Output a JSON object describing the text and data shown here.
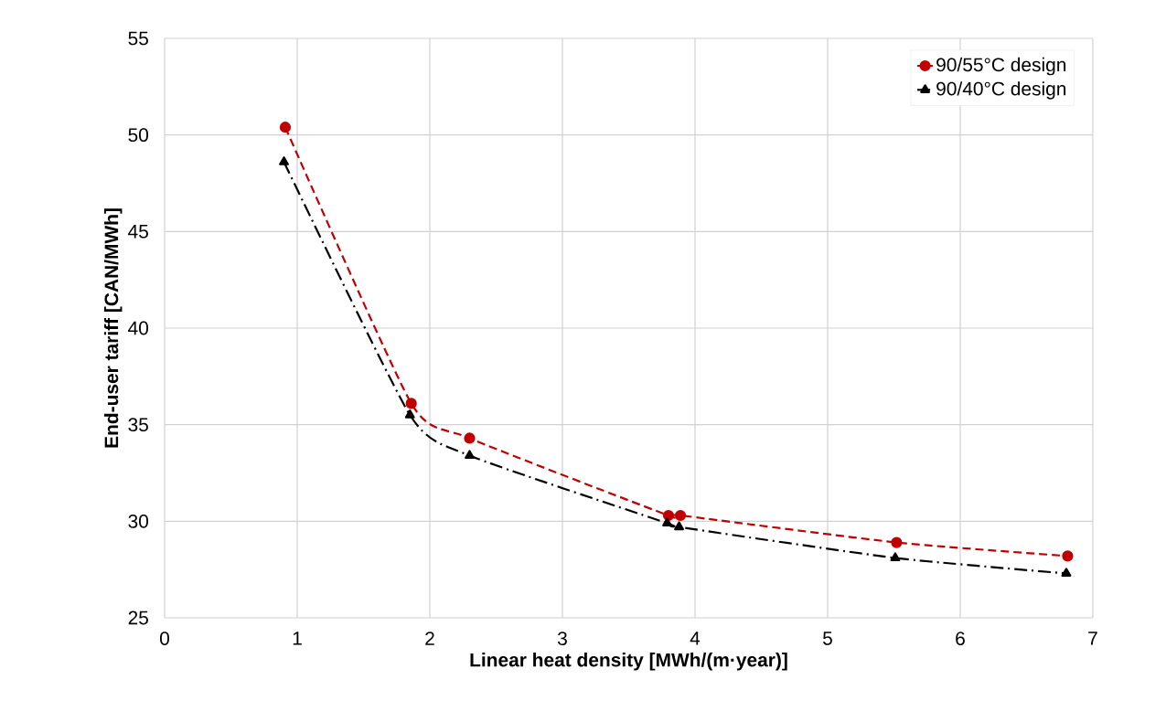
{
  "chart_data": {
    "type": "line",
    "xlabel": "Linear heat density [MWh/(m·year)]",
    "ylabel": "End-user tariff [CAN/MWh]",
    "xlim": [
      0,
      7
    ],
    "xticks": [
      0,
      1,
      2,
      3,
      4,
      5,
      6,
      7
    ],
    "ylim": [
      25,
      55
    ],
    "yticks": [
      25,
      30,
      35,
      40,
      45,
      50,
      55
    ],
    "grid": true,
    "legend": "top right",
    "series": [
      {
        "name": "90/55°C design",
        "color": "#c00000",
        "marker": "circle",
        "line_style": "dashed",
        "x": [
          0.91,
          1.86,
          2.3,
          3.8,
          3.89,
          5.52,
          6.81
        ],
        "values": [
          50.4,
          36.1,
          34.3,
          30.3,
          30.3,
          28.9,
          28.2
        ]
      },
      {
        "name": "90/40°C design",
        "color": "#000000",
        "marker": "triangle",
        "line_style": "dashdot",
        "x": [
          0.9,
          1.85,
          2.3,
          3.79,
          3.88,
          5.51,
          6.8
        ],
        "values": [
          48.6,
          35.5,
          33.4,
          29.9,
          29.7,
          28.1,
          27.3
        ]
      }
    ]
  }
}
